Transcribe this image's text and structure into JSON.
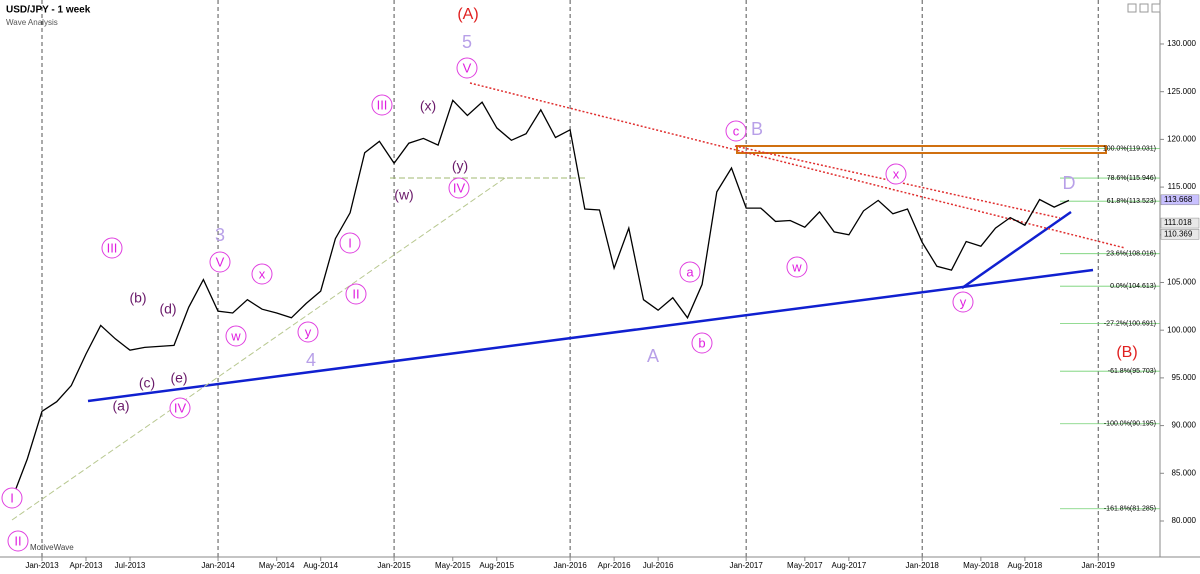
{
  "chart_data": {
    "type": "line",
    "title": "USD/JPY - 1 week",
    "subtitle": "Wave Analysis",
    "watermark": "MotiveWave",
    "color": "#000000",
    "grid": true,
    "ylim": [
      76.33,
      134.61
    ],
    "yticks": [
      {
        "value": 80,
        "label": "80.000"
      },
      {
        "value": 85,
        "label": "85.000"
      },
      {
        "value": 90,
        "label": "90.000"
      },
      {
        "value": 95,
        "label": "95.000"
      },
      {
        "value": 100,
        "label": "100.000"
      },
      {
        "value": 105,
        "label": "105.000"
      },
      {
        "value": 110,
        "label": "110.000"
      },
      {
        "value": 115,
        "label": "115.000"
      },
      {
        "value": 120,
        "label": "120.000"
      },
      {
        "value": 125,
        "label": "125.000"
      },
      {
        "value": 130,
        "label": "130.000"
      }
    ],
    "xticks": [
      "Jan-2013",
      "Apr-2013",
      "Jul-2013",
      "Jan-2014",
      "May-2014",
      "Aug-2014",
      "Jan-2015",
      "May-2015",
      "Aug-2015",
      "Jan-2016",
      "Apr-2016",
      "Jul-2016",
      "Jan-2017",
      "May-2017",
      "Aug-2017",
      "Jan-2018",
      "May-2018",
      "Aug-2018",
      "Jan-2019"
    ],
    "x": [
      "Nov-2012",
      "Dec-2012",
      "Jan-2013",
      "Feb-2013",
      "Mar-2013",
      "Apr-2013",
      "May-2013",
      "Jun-2013",
      "Jul-2013",
      "Aug-2013",
      "Sep-2013",
      "Oct-2013",
      "Nov-2013",
      "Dec-2013",
      "Jan-2014",
      "Feb-2014",
      "Mar-2014",
      "Apr-2014",
      "May-2014",
      "Jun-2014",
      "Jul-2014",
      "Aug-2014",
      "Sep-2014",
      "Oct-2014",
      "Nov-2014",
      "Dec-2014",
      "Jan-2015",
      "Feb-2015",
      "Mar-2015",
      "Apr-2015",
      "May-2015",
      "Jun-2015",
      "Jul-2015",
      "Aug-2015",
      "Sep-2015",
      "Oct-2015",
      "Nov-2015",
      "Dec-2015",
      "Jan-2016",
      "Feb-2016",
      "Mar-2016",
      "Apr-2016",
      "May-2016",
      "Jun-2016",
      "Jul-2016",
      "Aug-2016",
      "Sep-2016",
      "Oct-2016",
      "Nov-2016",
      "Dec-2016",
      "Jan-2017",
      "Feb-2017",
      "Mar-2017",
      "Apr-2017",
      "May-2017",
      "Jun-2017",
      "Jul-2017",
      "Aug-2017",
      "Sep-2017",
      "Oct-2017",
      "Nov-2017",
      "Dec-2017",
      "Jan-2018",
      "Feb-2018",
      "Mar-2018",
      "Apr-2018",
      "May-2018",
      "Jun-2018",
      "Jul-2018",
      "Aug-2018",
      "Sep-2018",
      "Oct-2018",
      "Nov-2018"
    ],
    "values": [
      82.5,
      86.5,
      91.5,
      92.5,
      94.2,
      97.5,
      100.5,
      99.1,
      97.9,
      98.2,
      98.3,
      98.4,
      102.4,
      105.3,
      102.0,
      101.8,
      103.2,
      102.2,
      101.8,
      101.3,
      102.8,
      104.1,
      109.6,
      112.3,
      118.6,
      119.8,
      117.5,
      119.6,
      120.1,
      119.4,
      124.1,
      122.5,
      123.9,
      121.2,
      119.9,
      120.6,
      123.1,
      120.2,
      121.0,
      112.7,
      112.6,
      106.5,
      110.7,
      103.2,
      102.1,
      103.4,
      101.3,
      104.8,
      114.5,
      117.0,
      112.8,
      112.8,
      111.4,
      111.5,
      110.8,
      112.4,
      110.3,
      110.0,
      112.5,
      113.6,
      112.2,
      112.7,
      109.2,
      106.7,
      106.3,
      109.3,
      108.8,
      110.7,
      111.8,
      111.0,
      113.7,
      112.9,
      113.6
    ],
    "fib_levels": [
      {
        "value": 119.031,
        "label": "100.0%(119.031)"
      },
      {
        "value": 115.946,
        "label": "78.6%(115.946)"
      },
      {
        "value": 113.523,
        "label": "61.8%(113.523)"
      },
      {
        "value": 108.016,
        "label": "23.6%(108.016)"
      },
      {
        "value": 104.613,
        "label": "0.0%(104.613)"
      },
      {
        "value": 100.691,
        "label": "-27.2%(100.691)"
      },
      {
        "value": 95.703,
        "label": "-61.8%(95.703)"
      },
      {
        "value": 90.195,
        "label": "-100.0%(90.195)"
      },
      {
        "value": 81.285,
        "label": "-161.8%(81.285)"
      }
    ],
    "price_tags": [
      {
        "value": 113.668,
        "label": "113.668",
        "color": "#c8c0ff"
      },
      {
        "value": 111.018,
        "label": "111.018",
        "color": "#e8e8e8"
      },
      {
        "value": 110.369,
        "label": "110.369",
        "color": "#e8e8e8"
      }
    ],
    "wave_labels": [
      {
        "text": "I",
        "style": "circle"
      },
      {
        "text": "II",
        "style": "circle"
      },
      {
        "text": "III",
        "style": "circle"
      },
      {
        "text": "IV",
        "style": "circle"
      },
      {
        "text": "V",
        "style": "circle"
      },
      {
        "text": "x",
        "style": "circle"
      },
      {
        "text": "w",
        "style": "circle"
      },
      {
        "text": "y",
        "style": "circle"
      },
      {
        "text": "I",
        "style": "circle"
      },
      {
        "text": "II",
        "style": "circle"
      },
      {
        "text": "III",
        "style": "circle"
      },
      {
        "text": "IV",
        "style": "circle"
      },
      {
        "text": "V",
        "style": "circle"
      },
      {
        "text": "a",
        "style": "circle"
      },
      {
        "text": "b",
        "style": "circle"
      },
      {
        "text": "c",
        "style": "circle"
      },
      {
        "text": "w",
        "style": "circle"
      },
      {
        "text": "x",
        "style": "circle"
      },
      {
        "text": "y",
        "style": "circle"
      },
      {
        "text": "(a)",
        "style": "minor"
      },
      {
        "text": "(b)",
        "style": "minor"
      },
      {
        "text": "(c)",
        "style": "minor"
      },
      {
        "text": "(d)",
        "style": "minor"
      },
      {
        "text": "(e)",
        "style": "minor"
      },
      {
        "text": "(x)",
        "style": "minor"
      },
      {
        "text": "(y)",
        "style": "minor"
      },
      {
        "text": "(w)",
        "style": "minor"
      },
      {
        "text": "3",
        "style": "major"
      },
      {
        "text": "4",
        "style": "major"
      },
      {
        "text": "5",
        "style": "major"
      },
      {
        "text": "A",
        "style": "major"
      },
      {
        "text": "B",
        "style": "major"
      },
      {
        "text": "D",
        "style": "major"
      },
      {
        "text": "(A)",
        "style": "primary"
      },
      {
        "text": "(B)",
        "style": "primary"
      }
    ]
  }
}
